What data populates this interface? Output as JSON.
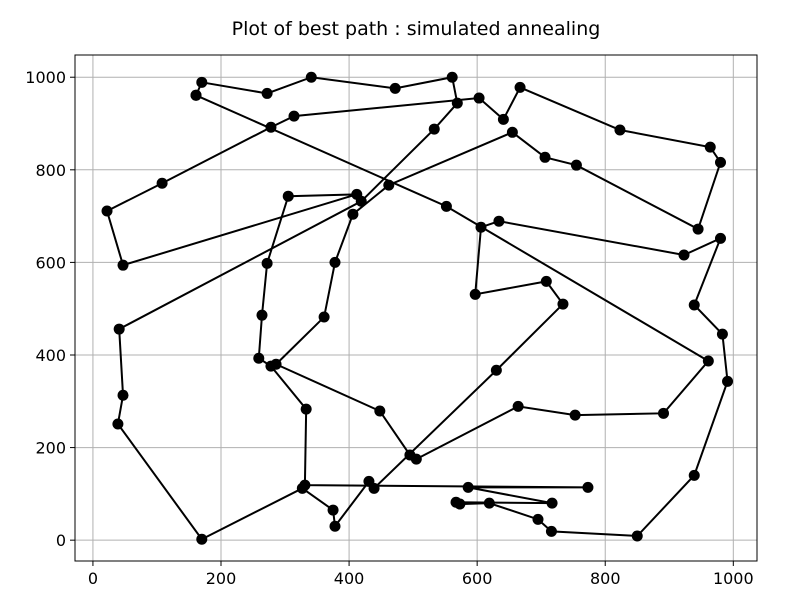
{
  "chart_data": {
    "type": "line",
    "title": "Plot of best path : simulated annealing",
    "x": [
      161,
      170,
      272,
      341,
      472,
      561,
      569,
      533,
      419,
      41,
      47,
      39,
      170,
      327,
      375,
      378,
      431,
      439,
      630,
      734,
      708,
      597,
      606,
      634,
      923,
      980,
      939,
      983,
      991,
      939,
      850,
      716,
      695,
      619,
      573,
      567,
      717,
      586,
      773,
      331,
      333,
      278,
      259,
      264,
      272,
      305,
      412,
      47,
      22,
      108,
      278,
      314,
      603,
      641,
      667,
      823,
      964,
      980,
      945,
      755,
      706,
      655,
      462,
      406,
      378,
      361,
      286,
      448,
      495,
      505,
      664,
      753,
      891,
      961,
      552,
      161
    ],
    "series": [
      {
        "color": "#000000",
        "marker": "o",
        "values": [
          961,
          989,
          965,
          1000,
          976,
          1000,
          944,
          888,
          732,
          456,
          313,
          251,
          2,
          112,
          65,
          30,
          127,
          112,
          367,
          510,
          559,
          531,
          676,
          689,
          616,
          652,
          508,
          445,
          343,
          140,
          9,
          19,
          45,
          80,
          78,
          82,
          80,
          114,
          114,
          119,
          283,
          376,
          393,
          486,
          598,
          743,
          747,
          594,
          711,
          771,
          892,
          916,
          955,
          909,
          978,
          886,
          849,
          816,
          672,
          810,
          827,
          881,
          767,
          704,
          600,
          482,
          380,
          279,
          184,
          175,
          289,
          270,
          274,
          387,
          721,
          961
        ]
      }
    ],
    "xlim": [
      -28,
      1037
    ],
    "ylim": [
      -45,
      1048
    ],
    "xticks": [
      0,
      200,
      400,
      600,
      800,
      1000
    ],
    "yticks": [
      0,
      200,
      400,
      600,
      800,
      1000
    ],
    "grid": true
  }
}
